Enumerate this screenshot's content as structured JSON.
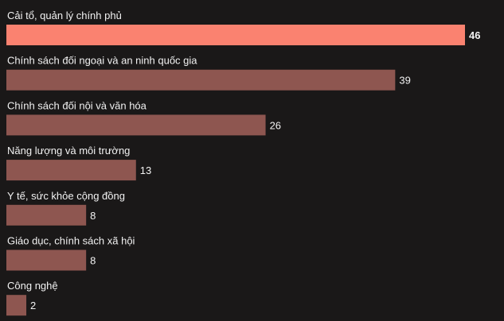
{
  "chart_data": {
    "type": "bar",
    "orientation": "horizontal",
    "categories": [
      "Cải tổ, quản lý chính phủ",
      "Chính sách đối ngoại và an ninh quốc gia",
      "Chính sách đối nội và văn hóa",
      "Năng lượng và môi trường",
      "Y tế, sức khỏe cộng đồng",
      "Giáo dục, chính sách xã hội",
      "Công nghệ"
    ],
    "values": [
      46,
      39,
      26,
      13,
      8,
      8,
      2
    ],
    "value_labels": [
      "46",
      "39",
      "26",
      "13",
      "8",
      "8",
      "2"
    ],
    "highlight_index": 0,
    "xlim": [
      0,
      46
    ],
    "grid": false,
    "legend": "none",
    "colors": {
      "background": "#1a1818",
      "bar": "#8e5650",
      "bar_highlight": "#fa8270",
      "text": "#f2f2f2"
    }
  }
}
